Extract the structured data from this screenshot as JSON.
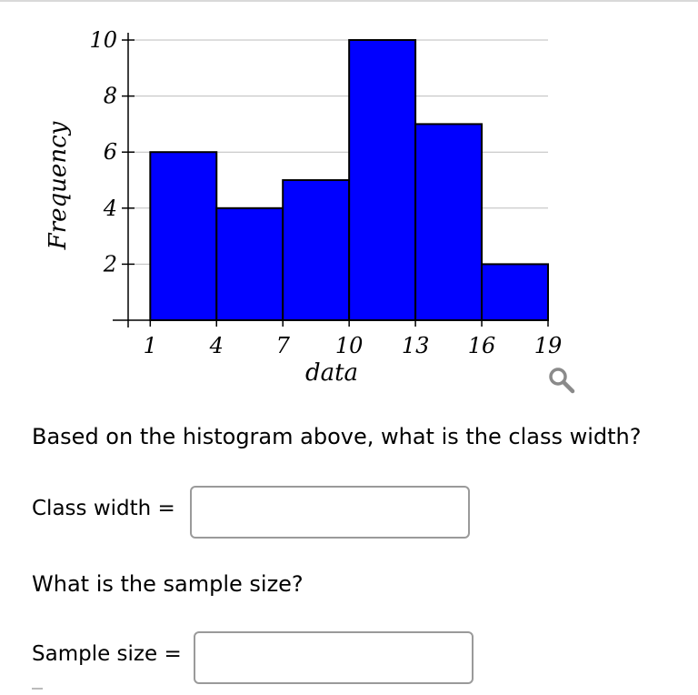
{
  "chart_data": {
    "type": "bar",
    "xlabel": "data",
    "ylabel": "Frequency",
    "x_ticks": [
      1,
      4,
      7,
      10,
      13,
      16,
      19
    ],
    "y_ticks": [
      2,
      4,
      6,
      8,
      10
    ],
    "bins": [
      [
        1,
        4
      ],
      [
        4,
        7
      ],
      [
        7,
        10
      ],
      [
        10,
        13
      ],
      [
        13,
        16
      ],
      [
        16,
        19
      ]
    ],
    "values": [
      6,
      4,
      5,
      10,
      7,
      2
    ],
    "xlim": [
      0,
      19
    ],
    "ylim": [
      0,
      10
    ],
    "grid": "horizontal",
    "bar_color": "#0000ff",
    "edge_color": "#000000"
  },
  "question": {
    "text": "Based on the histogram above, what is the class width?",
    "class_width_label": "Class width =",
    "sample_size_question": "What is the sample size?",
    "sample_size_label": "Sample size ="
  },
  "icons": {
    "zoom": "magnifier-icon"
  }
}
